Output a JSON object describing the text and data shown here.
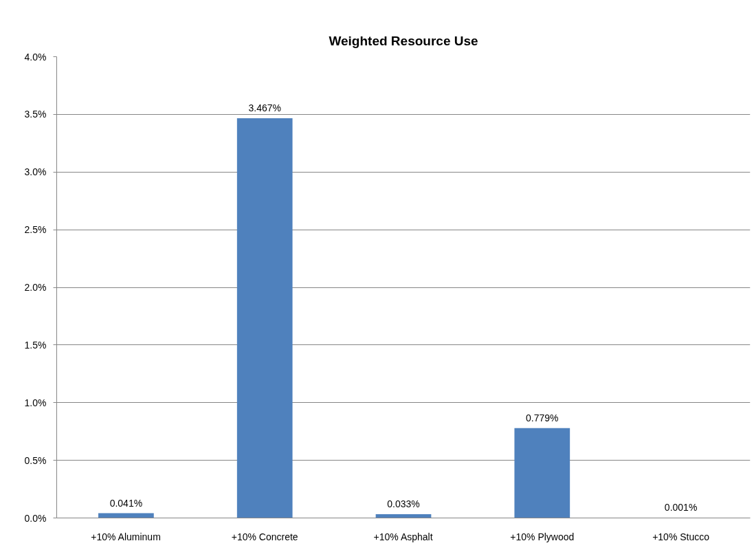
{
  "chart_data": {
    "type": "bar",
    "title": "Weighted Resource Use",
    "categories": [
      "+10% Aluminum",
      "+10% Concrete",
      "+10% Asphalt",
      "+10% Plywood",
      "+10% Stucco"
    ],
    "values": [
      0.041,
      3.467,
      0.033,
      0.779,
      0.001
    ],
    "value_labels": [
      "0.041%",
      "3.467%",
      "0.033%",
      "0.779%",
      "0.001%"
    ],
    "color": "#4f81bd",
    "ylim": [
      0,
      4
    ],
    "yticks": [
      {
        "value": 0,
        "label": "0.0%"
      },
      {
        "value": 0.5,
        "label": "0.5%"
      },
      {
        "value": 1,
        "label": "1.0%"
      },
      {
        "value": 1.5,
        "label": "1.5%"
      },
      {
        "value": 2,
        "label": "2.0%"
      },
      {
        "value": 2.5,
        "label": "2.5%"
      },
      {
        "value": 3,
        "label": "3.0%"
      },
      {
        "value": 3.5,
        "label": "3.5%"
      },
      {
        "value": 4,
        "label": "4.0%"
      }
    ],
    "grid": "y"
  }
}
